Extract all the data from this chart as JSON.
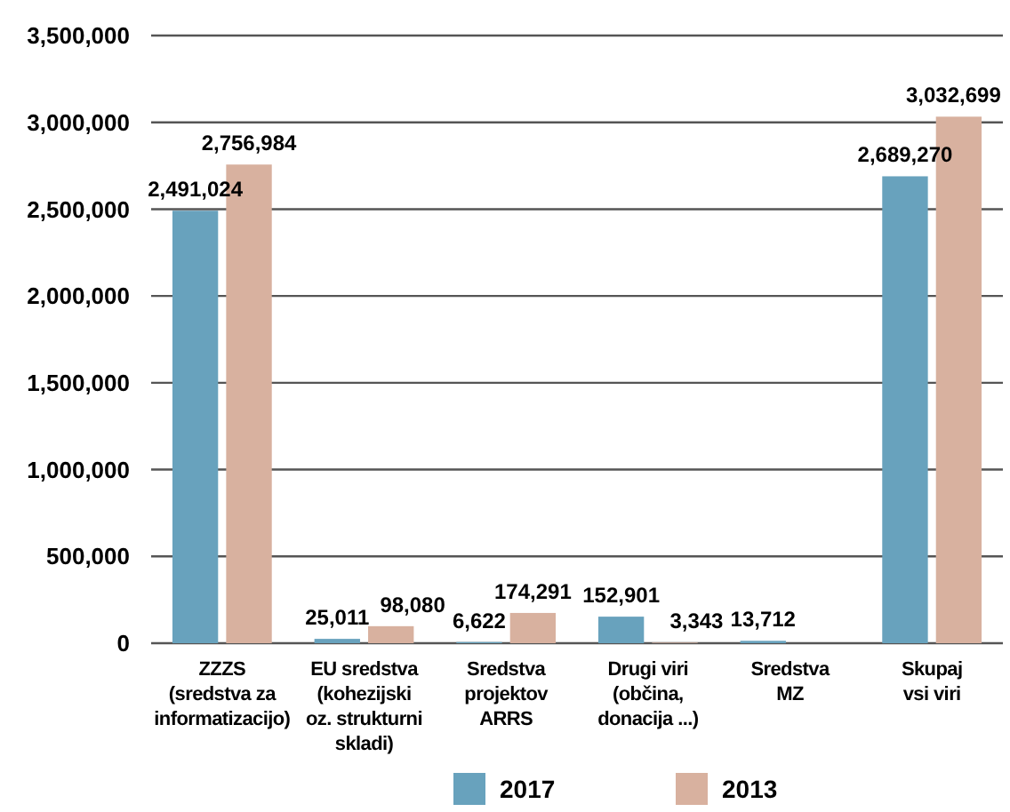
{
  "chart_data": {
    "type": "bar",
    "categories": [
      "ZZZS\n(sredstva za\ninformatizacijo)",
      "EU sredstva\n(kohezijski\noz. strukturni\nskladi)",
      "Sredstva\nprojektov\nARRS",
      "Drugi viri\n(občina,\ndonacija ...)",
      "Sredstva\nMZ",
      "Skupaj\nvsi viri"
    ],
    "series": [
      {
        "name": "2017",
        "color": "#68a2bd",
        "values": [
          2491024,
          25011,
          6622,
          152901,
          13712,
          2689270
        ],
        "value_labels": [
          "2,491,024",
          "25,011",
          "6,622",
          "152,901",
          "13,712",
          "2,689,270"
        ]
      },
      {
        "name": "2013",
        "color": "#d8b19f",
        "values": [
          2756984,
          98080,
          174291,
          3343,
          null,
          3032699
        ],
        "value_labels": [
          "2,756,984",
          "98,080",
          "174,291",
          "3,343",
          null,
          "3,032,699"
        ]
      }
    ],
    "ylim": [
      0,
      3500000
    ],
    "yticks": [
      {
        "value": 0,
        "label": "0"
      },
      {
        "value": 500000,
        "label": "500,000"
      },
      {
        "value": 1000000,
        "label": "1,000,000"
      },
      {
        "value": 1500000,
        "label": "1,500,000"
      },
      {
        "value": 2000000,
        "label": "2,000,000"
      },
      {
        "value": 2500000,
        "label": "2,500,000"
      },
      {
        "value": 3000000,
        "label": "3,000,000"
      },
      {
        "value": 3500000,
        "label": "3,500,000"
      }
    ],
    "grid": "y",
    "legend": "bottom"
  }
}
